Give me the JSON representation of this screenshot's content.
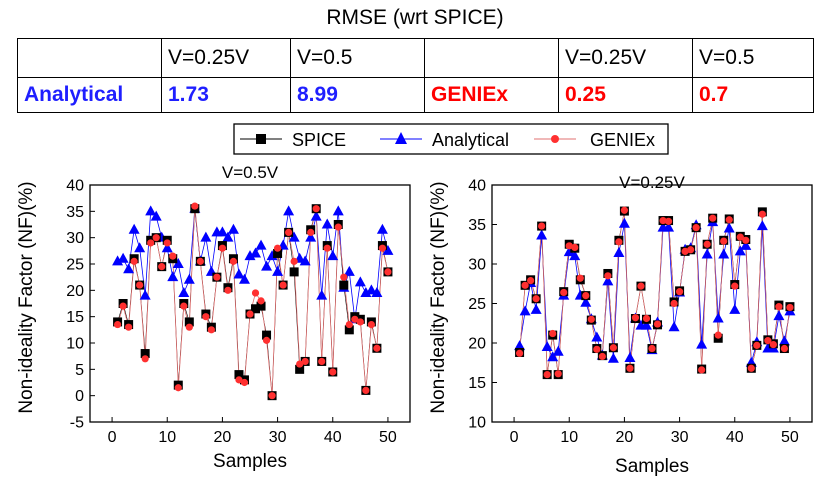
{
  "table": {
    "title": "RMSE (wrt SPICE)",
    "header": [
      "",
      "V=0.25V",
      "V=0.5",
      "",
      "V=0.25V",
      "V=0.5"
    ],
    "row": [
      "Analytical",
      "1.73",
      "8.99",
      "GENIEx",
      "0.25",
      "0.7"
    ]
  },
  "legend": {
    "spice": "SPICE",
    "analytical": "Analytical",
    "geniex": "GENIEx"
  },
  "colors": {
    "spice": "#000000",
    "analytical": "#0000ff",
    "geniex": "#ff3030",
    "line": "#e07070"
  },
  "chart_data": [
    {
      "type": "line",
      "title": "V=0.5V",
      "xlabel": "Samples",
      "ylabel": "Non-ideality Factor (NF)(%)",
      "xlim": [
        -4,
        54
      ],
      "ylim": [
        -5,
        40
      ],
      "xticks": [
        0,
        10,
        20,
        30,
        40,
        50
      ],
      "yticks": [
        -5,
        0,
        5,
        10,
        15,
        20,
        25,
        30,
        35,
        40
      ],
      "x": [
        1,
        2,
        3,
        4,
        5,
        6,
        7,
        8,
        9,
        10,
        11,
        12,
        13,
        14,
        15,
        16,
        17,
        18,
        19,
        20,
        21,
        22,
        23,
        24,
        25,
        26,
        27,
        28,
        29,
        30,
        31,
        32,
        33,
        34,
        35,
        36,
        37,
        38,
        39,
        40,
        41,
        42,
        43,
        44,
        45,
        46,
        47,
        48,
        49,
        50
      ],
      "series": [
        {
          "name": "SPICE",
          "values": [
            14,
            17.5,
            13.5,
            26,
            21,
            8,
            29.5,
            30,
            24.5,
            29.5,
            26,
            2,
            17.5,
            14,
            35.5,
            25.5,
            15.5,
            13,
            22.5,
            28.5,
            20.5,
            26,
            4,
            3,
            15.5,
            16.5,
            17,
            11.5,
            0,
            27,
            21,
            31,
            23.5,
            5,
            6.5,
            31.5,
            35.5,
            6.5,
            28.5,
            4.5,
            32.5,
            21,
            12.5,
            15,
            14.5,
            1,
            14,
            9,
            28.5,
            23.5
          ]
        },
        {
          "name": "Analytical",
          "values": [
            25.5,
            26,
            24,
            31.5,
            28,
            19,
            35,
            34,
            30,
            28,
            22.5,
            25,
            19.5,
            22,
            35.5,
            25.5,
            30,
            23.5,
            31,
            31,
            30,
            31.5,
            23,
            22,
            26.5,
            27,
            28.5,
            24.5,
            26.5,
            23.5,
            28.5,
            35,
            30,
            26,
            25.5,
            30,
            34,
            19,
            32.5,
            26.5,
            35,
            20.5,
            23.5,
            14.5,
            21.5,
            19.5,
            20,
            19.5,
            31.5,
            27.5
          ]
        },
        {
          "name": "GENIEx",
          "values": [
            13.5,
            17,
            13,
            25.5,
            21,
            7,
            29,
            30,
            24.5,
            29,
            26.5,
            1.5,
            17,
            13,
            36,
            25.5,
            15,
            12.5,
            22.5,
            28,
            20,
            25.5,
            3,
            2.5,
            15.5,
            19.5,
            18,
            10.5,
            0,
            28,
            21,
            31,
            25.5,
            6,
            6.5,
            31,
            35.5,
            6.5,
            28,
            4.5,
            32,
            22.5,
            13.5,
            14.5,
            14,
            1,
            13.5,
            9,
            28,
            23.5
          ]
        }
      ]
    },
    {
      "type": "line",
      "title": "V=0.25V",
      "xlabel": "Samples",
      "ylabel": "Non-ideality Factor (NF)(%)",
      "xlim": [
        -4,
        54
      ],
      "ylim": [
        10,
        40
      ],
      "xticks": [
        0,
        10,
        20,
        30,
        40,
        50
      ],
      "yticks": [
        10,
        15,
        20,
        25,
        30,
        35,
        40
      ],
      "x": [
        1,
        2,
        3,
        4,
        5,
        6,
        7,
        8,
        9,
        10,
        11,
        12,
        13,
        14,
        15,
        16,
        17,
        18,
        19,
        20,
        21,
        22,
        23,
        24,
        25,
        26,
        27,
        28,
        29,
        30,
        31,
        32,
        33,
        34,
        35,
        36,
        37,
        38,
        39,
        40,
        41,
        42,
        43,
        44,
        45,
        46,
        47,
        48,
        49,
        50
      ],
      "series": [
        {
          "name": "SPICE",
          "values": [
            18.8,
            27.3,
            28,
            25.6,
            34.8,
            16,
            21,
            16,
            26.5,
            32.5,
            32,
            28,
            26,
            22.9,
            19.3,
            18.4,
            28.8,
            19.4,
            33,
            36.7,
            16.8,
            23.1,
            27.2,
            23,
            19.3,
            22.3,
            35.5,
            35.5,
            25.2,
            26.6,
            31.6,
            31.8,
            34.6,
            16.7,
            32.5,
            35.8,
            20.6,
            33,
            35.7,
            27.4,
            33.5,
            33.1,
            16.8,
            19.7,
            36.6,
            20.4,
            19.9,
            24.8,
            19.3,
            24.6
          ]
        },
        {
          "name": "Analytical",
          "values": [
            19.6,
            24,
            27.6,
            24.2,
            33.6,
            19.5,
            18.2,
            18.9,
            26,
            31.5,
            31,
            26,
            25.1,
            23,
            20.7,
            18.4,
            27.8,
            18,
            31.4,
            35.1,
            18.1,
            23.1,
            22.2,
            22.2,
            19.1,
            22.6,
            34.6,
            34.6,
            22,
            26.4,
            31.8,
            32,
            34.9,
            19.8,
            31.2,
            35.3,
            23.1,
            31.2,
            34.5,
            24.2,
            31.6,
            32.3,
            17.5,
            20.1,
            34.8,
            19.3,
            19.3,
            23.4,
            20.2,
            24
          ]
        },
        {
          "name": "GENIEx",
          "values": [
            18.7,
            27.3,
            27.9,
            25.6,
            34.8,
            16,
            21.2,
            16.1,
            26.4,
            32.3,
            32.1,
            28.2,
            26,
            23,
            19.2,
            18.3,
            28.5,
            19.4,
            32.8,
            36.8,
            16.8,
            23.2,
            27.2,
            23.1,
            19.3,
            22.4,
            35.5,
            35.4,
            25,
            26.5,
            31.6,
            31.8,
            34.6,
            16.6,
            32.5,
            35.8,
            21,
            32.9,
            35.6,
            27.2,
            33.4,
            33,
            16.8,
            19.7,
            36.3,
            20.3,
            19.8,
            24.6,
            19.3,
            24.5
          ]
        }
      ]
    }
  ]
}
